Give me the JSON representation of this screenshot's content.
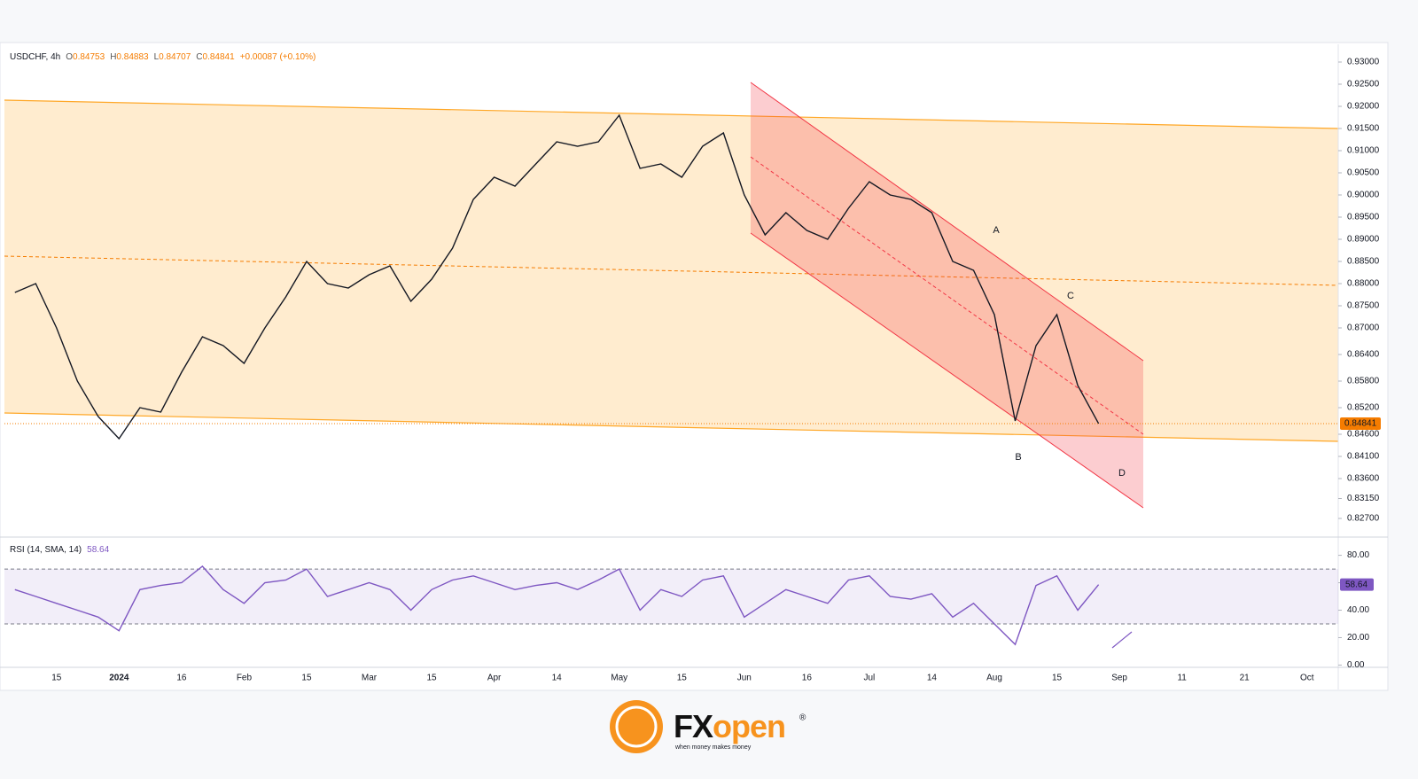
{
  "chart_data": [
    {
      "type": "line",
      "title": "USDCHF, 4h",
      "ohlc": [
        {
          "label": "O",
          "value": "0.84753"
        },
        {
          "label": "H",
          "value": "0.84883"
        },
        {
          "label": "L",
          "value": "0.84707"
        },
        {
          "label": "C",
          "value": "0.84841"
        }
      ],
      "change": "+0.00087 (+0.10%)",
      "color": "#131722",
      "values": [
        0.878,
        0.88,
        0.87,
        0.858,
        0.85,
        0.845,
        0.852,
        0.851,
        0.86,
        0.868,
        0.866,
        0.862,
        0.87,
        0.877,
        0.885,
        0.88,
        0.879,
        0.882,
        0.884,
        0.876,
        0.881,
        0.888,
        0.899,
        0.904,
        0.902,
        0.907,
        0.912,
        0.911,
        0.912,
        0.918,
        0.906,
        0.907,
        0.904,
        0.911,
        0.914,
        0.9,
        0.891,
        0.896,
        0.892,
        0.89,
        0.897,
        0.903,
        0.9,
        0.899,
        0.896,
        0.885,
        0.883,
        0.873,
        0.849,
        0.866,
        0.873,
        0.857,
        0.84841,
        null,
        null,
        null,
        null,
        null,
        null,
        null,
        null,
        null,
        null,
        null
      ],
      "last_value": 0.84841,
      "annotations": [
        "A",
        "B",
        "C",
        "D"
      ],
      "ylim": [
        0.823,
        0.9336
      ],
      "yticks": [
        {
          "value": 0.93,
          "label": "0.93000"
        },
        {
          "value": 0.925,
          "label": "0.92500"
        },
        {
          "value": 0.92,
          "label": "0.92000"
        },
        {
          "value": 0.915,
          "label": "0.91500"
        },
        {
          "value": 0.91,
          "label": "0.91000"
        },
        {
          "value": 0.905,
          "label": "0.90500"
        },
        {
          "value": 0.9,
          "label": "0.90000"
        },
        {
          "value": 0.895,
          "label": "0.89500"
        },
        {
          "value": 0.89,
          "label": "0.89000"
        },
        {
          "value": 0.885,
          "label": "0.88500"
        },
        {
          "value": 0.88,
          "label": "0.88000"
        },
        {
          "value": 0.875,
          "label": "0.87500"
        },
        {
          "value": 0.87,
          "label": "0.87000"
        },
        {
          "value": 0.864,
          "label": "0.86400"
        },
        {
          "value": 0.858,
          "label": "0.85800"
        },
        {
          "value": 0.852,
          "label": "0.85200"
        },
        {
          "value": 0.846,
          "label": "0.84600"
        },
        {
          "value": 0.841,
          "label": "0.84100"
        },
        {
          "value": 0.836,
          "label": "0.83600"
        },
        {
          "value": 0.8315,
          "label": "0.83150"
        },
        {
          "value": 0.827,
          "label": "0.82700"
        }
      ]
    },
    {
      "type": "line",
      "title": "RSI (14, SMA, 14)",
      "header_value": 58.64,
      "last_value": 58.64,
      "color": "#7e57c2",
      "categories": [
        null,
        null,
        "15",
        null,
        null,
        "2024",
        null,
        null,
        "16",
        null,
        null,
        "Feb",
        null,
        null,
        "15",
        null,
        null,
        "Mar",
        null,
        null,
        "15",
        null,
        null,
        "Apr",
        null,
        null,
        "14",
        null,
        null,
        "May",
        null,
        null,
        "15",
        null,
        null,
        "Jun",
        null,
        null,
        "16",
        null,
        null,
        "Jul",
        null,
        null,
        "14",
        null,
        null,
        "Aug",
        null,
        null,
        "15",
        null,
        null,
        "Sep",
        null,
        null,
        "11",
        null,
        null,
        "21",
        null,
        null,
        "Oct",
        null
      ],
      "values": [
        55,
        50,
        45,
        40,
        35,
        25,
        55,
        58,
        60,
        72,
        55,
        45,
        60,
        62,
        70,
        50,
        55,
        60,
        55,
        40,
        55,
        62,
        65,
        60,
        55,
        58,
        60,
        55,
        62,
        70,
        40,
        55,
        50,
        62,
        65,
        35,
        45,
        55,
        50,
        45,
        62,
        65,
        50,
        48,
        52,
        35,
        45,
        30,
        15,
        58,
        65,
        40,
        58.64,
        null,
        null,
        null,
        null,
        null,
        null,
        null,
        null,
        null,
        null,
        null
      ],
      "levels": [
        70,
        30
      ],
      "ylim": [
        -1,
        92
      ],
      "yticks": [
        {
          "value": 0,
          "label": "0.00"
        },
        {
          "value": 20,
          "label": "20.00"
        },
        {
          "value": 40,
          "label": "40.00"
        },
        {
          "value": 60,
          "label": "60.00"
        },
        {
          "value": 80,
          "label": "80.00"
        }
      ]
    }
  ],
  "logo": {
    "brand_a": "FX",
    "brand_b": "open",
    "mark": "®",
    "tagline": "when money makes money"
  }
}
